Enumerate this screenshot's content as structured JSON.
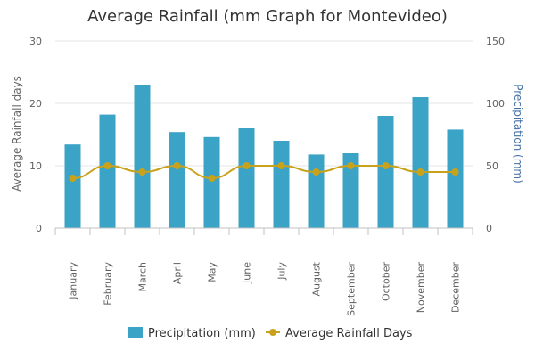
{
  "chart_data": {
    "type": "bar",
    "title": "Average Rainfall (mm Graph for Montevideo)",
    "categories": [
      "January",
      "February",
      "March",
      "April",
      "May",
      "June",
      "July",
      "August",
      "September",
      "October",
      "November",
      "December"
    ],
    "series": [
      {
        "name": "Precipitation (mm)",
        "type": "bar",
        "axis": "right",
        "color": "#3ba3c6",
        "values": [
          67,
          91,
          115,
          77,
          73,
          80,
          70,
          59,
          60,
          90,
          105,
          79
        ]
      },
      {
        "name": "Average Rainfall Days",
        "type": "line",
        "axis": "left",
        "color": "#c9a21c",
        "values": [
          8,
          10,
          9,
          10,
          8,
          10,
          10,
          9,
          10,
          10,
          9,
          9
        ]
      }
    ],
    "y_left": {
      "label": "Average Rainfall days",
      "ylim": [
        0,
        30
      ],
      "ticks": [
        "0",
        "10",
        "20",
        "30"
      ]
    },
    "y_right": {
      "label": "Precipitation (mm)",
      "ylim": [
        0,
        150
      ],
      "ticks": [
        "0",
        "50",
        "100",
        "150"
      ]
    },
    "grid": true,
    "legend_position": "bottom-center"
  }
}
